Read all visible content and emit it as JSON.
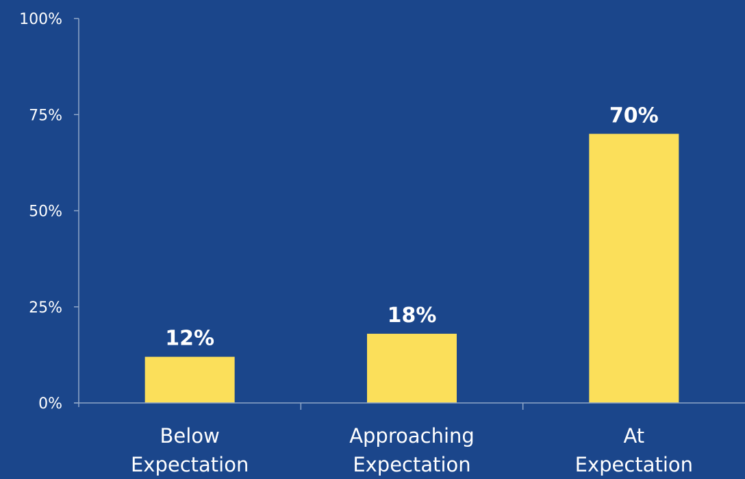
{
  "chart_data": {
    "type": "bar",
    "categories": [
      [
        "Below",
        "Expectation"
      ],
      [
        "Approaching",
        "Expectation"
      ],
      [
        "At",
        "Expectation"
      ]
    ],
    "values": [
      12,
      18,
      70
    ],
    "data_labels": [
      "12%",
      "18%",
      "70%"
    ],
    "y_ticks": [
      {
        "value": 0,
        "label": "0%"
      },
      {
        "value": 25,
        "label": "25%"
      },
      {
        "value": 50,
        "label": "50%"
      },
      {
        "value": 75,
        "label": "75%"
      },
      {
        "value": 100,
        "label": "100%"
      }
    ],
    "ylim": [
      0,
      100
    ],
    "title": "",
    "xlabel": "",
    "ylabel": "",
    "grid": false,
    "legend": "none",
    "colors": {
      "background": "#1b468b",
      "bar": "#fbdf5a",
      "text": "#ffffff",
      "axis": "#8fa6c8"
    }
  }
}
